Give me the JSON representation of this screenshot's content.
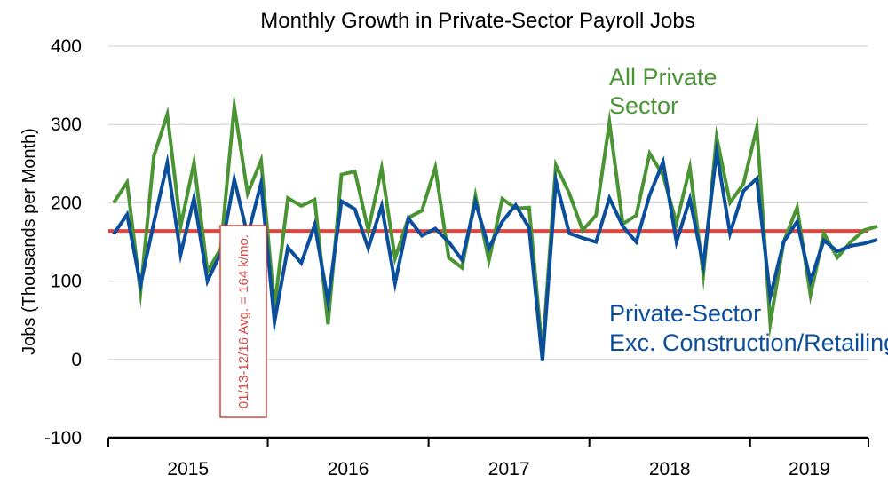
{
  "chart_data": {
    "type": "line",
    "title": "Monthly Growth in Private-Sector Payroll Jobs",
    "ylabel": "Jobs (Thousands per Month)",
    "ylim": [
      -100,
      400
    ],
    "yticks": [
      "400",
      "300",
      "200",
      "100",
      "0",
      "-100"
    ],
    "year_labels": [
      "2015",
      "2016",
      "2017",
      "2018",
      "2019"
    ],
    "grid": true,
    "series": [
      {
        "name": "All Private Sector",
        "name_lines": [
          "All Private",
          "Sector"
        ],
        "color": "#4a9434",
        "values": [
          200,
          226,
          86,
          260,
          313,
          170,
          251,
          112,
          142,
          323,
          212,
          254,
          67,
          206,
          196,
          204,
          45,
          236,
          240,
          165,
          244,
          129,
          181,
          190,
          245,
          130,
          117,
          209,
          126,
          205,
          193,
          194,
          8,
          248,
          212,
          165,
          184,
          303,
          173,
          184,
          263,
          235,
          174,
          245,
          108,
          284,
          200,
          224,
          296,
          46,
          150,
          194,
          82,
          161,
          130,
          150,
          165,
          170
        ],
        "month_offsets": [
          0,
          1,
          2,
          3,
          4,
          5,
          6,
          7,
          8,
          9,
          10,
          11,
          12,
          13,
          14,
          15,
          16,
          17,
          18,
          19,
          20,
          21,
          22,
          23,
          24,
          25,
          26,
          27,
          28,
          29,
          30,
          31,
          32,
          33,
          34,
          35,
          36,
          37,
          38,
          39,
          40,
          41,
          42,
          43,
          44,
          45,
          46,
          47,
          48,
          49,
          50,
          51,
          52,
          53,
          54,
          55,
          56,
          57
        ]
      },
      {
        "name": "Private-Sector Exc. Construction/Retailing",
        "name_lines": [
          "Private-Sector",
          "Exc. Construction/Retailing"
        ],
        "color": "#0b4f9c",
        "values": [
          160,
          185,
          95,
          175,
          251,
          134,
          206,
          100,
          136,
          230,
          158,
          225,
          48,
          143,
          123,
          172,
          74,
          202,
          192,
          142,
          196,
          97,
          180,
          158,
          167,
          150,
          127,
          201,
          142,
          176,
          197,
          168,
          -2,
          228,
          161,
          155,
          150,
          206,
          170,
          150,
          210,
          252,
          150,
          205,
          120,
          265,
          161,
          215,
          231,
          80,
          150,
          176,
          100,
          152,
          138,
          145,
          148,
          153
        ],
        "month_offsets": [
          0,
          1,
          2,
          3,
          4,
          5,
          6,
          7,
          8,
          9,
          10,
          11,
          12,
          13,
          14,
          15,
          16,
          17,
          18,
          19,
          20,
          21,
          22,
          23,
          24,
          25,
          26,
          27,
          28,
          29,
          30,
          31,
          32,
          33,
          34,
          35,
          36,
          37,
          38,
          39,
          40,
          41,
          42,
          43,
          44,
          45,
          46,
          47,
          48,
          49,
          50,
          51,
          52,
          53,
          54,
          55,
          56,
          57
        ]
      }
    ],
    "reference_line": {
      "value": 164,
      "color": "#d9473f",
      "label": "01/13-12/16 Avg. = 164 k/mo."
    },
    "axis_color": "#000000",
    "grid_color": "#d0d0d0"
  }
}
